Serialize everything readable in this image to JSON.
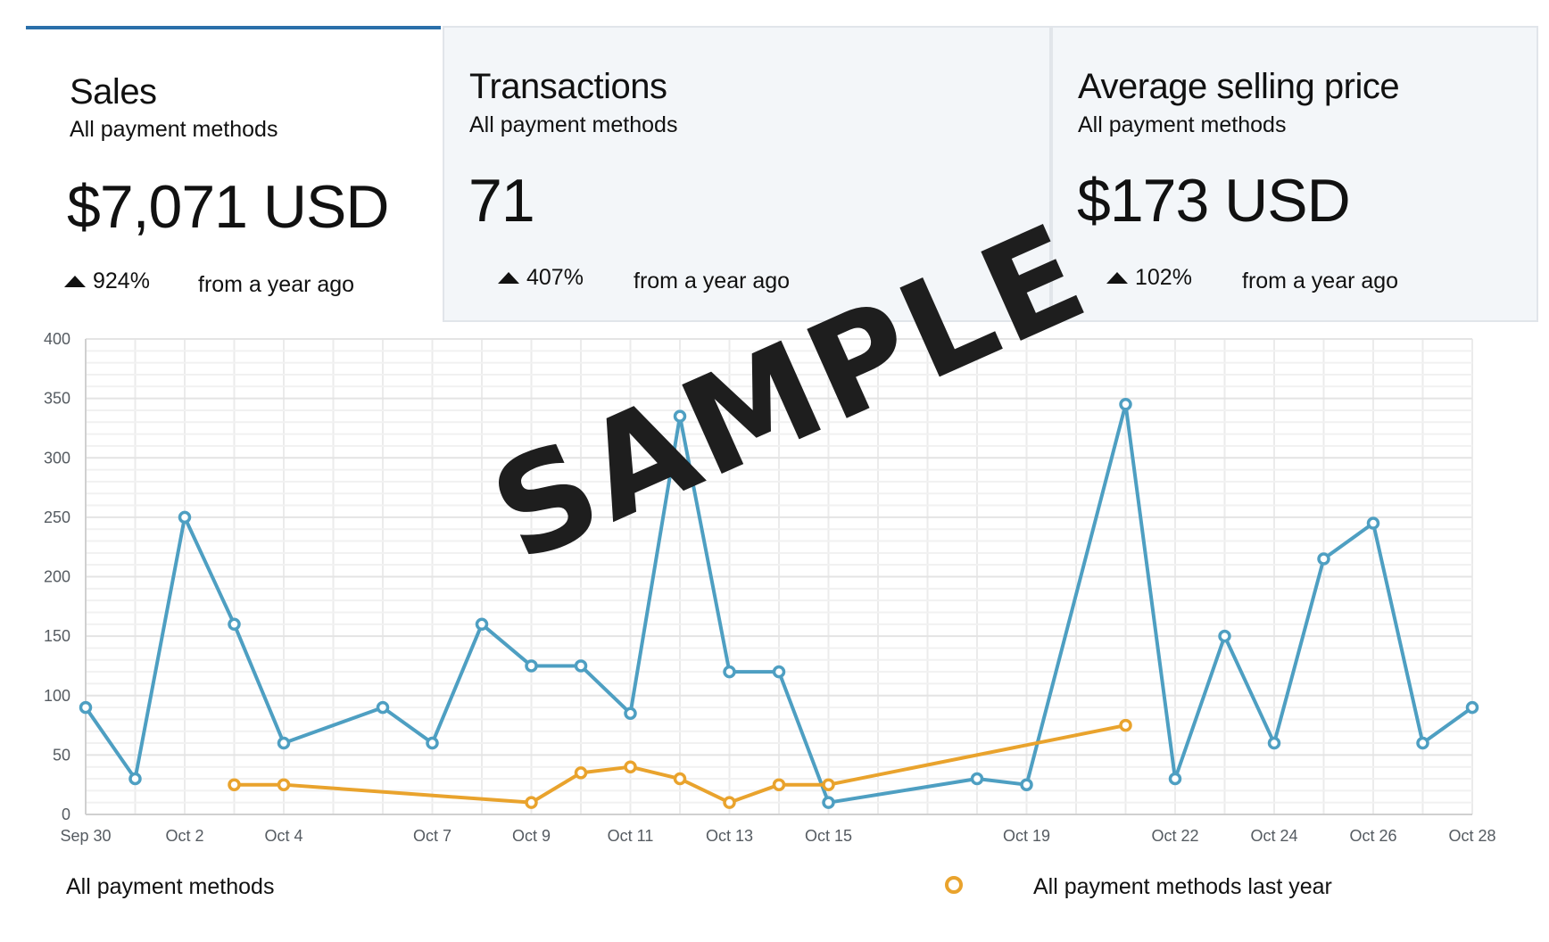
{
  "cards": [
    {
      "title": "Sales",
      "subtitle": "All payment methods",
      "value": "$7,071 USD",
      "change": "924%",
      "period": "from a year ago",
      "icon": "up-triangle-icon"
    },
    {
      "title": "Transactions",
      "subtitle": "All payment methods",
      "value": "71",
      "change": "407%",
      "period": "from a year ago",
      "icon": "up-triangle-icon"
    },
    {
      "title": "Average selling price",
      "subtitle": "All payment methods",
      "value": "$173 USD",
      "change": "102%",
      "period": "from a year ago",
      "icon": "up-triangle-icon"
    }
  ],
  "watermark": "SAMPLE",
  "legend": {
    "current": "All payment methods",
    "previous": "All payment methods last year"
  },
  "colors": {
    "current": "#4e9fc2",
    "previous": "#e9a32d",
    "active_tab": "#2a6faa",
    "inactive_bg": "#f3f6f9"
  },
  "chart_data": {
    "type": "line",
    "x_ticks": [
      "Sep 30",
      "Oct 2",
      "Oct 4",
      "Oct 7",
      "Oct 9",
      "Oct 11",
      "Oct 13",
      "Oct 15",
      "Oct 19",
      "Oct 22",
      "Oct 24",
      "Oct 26",
      "Oct 28"
    ],
    "y_ticks": [
      0,
      50,
      100,
      150,
      200,
      250,
      300,
      350,
      400
    ],
    "ylim": [
      0,
      400
    ],
    "x_range": [
      "2018-09-30",
      "2018-10-28"
    ],
    "grid": true,
    "legend_position": "bottom",
    "series": [
      {
        "name": "All payment methods",
        "color": "#4e9fc2",
        "points": [
          [
            "2018-09-30",
            90
          ],
          [
            "2018-10-01",
            30
          ],
          [
            "2018-10-02",
            250
          ],
          [
            "2018-10-03",
            160
          ],
          [
            "2018-10-04",
            60
          ],
          [
            "2018-10-06",
            90
          ],
          [
            "2018-10-07",
            60
          ],
          [
            "2018-10-08",
            160
          ],
          [
            "2018-10-09",
            125
          ],
          [
            "2018-10-10",
            125
          ],
          [
            "2018-10-11",
            85
          ],
          [
            "2018-10-12",
            335
          ],
          [
            "2018-10-13",
            120
          ],
          [
            "2018-10-14",
            120
          ],
          [
            "2018-10-15",
            10
          ],
          [
            "2018-10-18",
            30
          ],
          [
            "2018-10-19",
            25
          ],
          [
            "2018-10-21",
            345
          ],
          [
            "2018-10-22",
            30
          ],
          [
            "2018-10-23",
            150
          ],
          [
            "2018-10-24",
            60
          ],
          [
            "2018-10-25",
            215
          ],
          [
            "2018-10-26",
            245
          ],
          [
            "2018-10-27",
            60
          ],
          [
            "2018-10-28",
            90
          ]
        ]
      },
      {
        "name": "All payment methods last year",
        "color": "#e9a32d",
        "points": [
          [
            "2018-10-03",
            25
          ],
          [
            "2018-10-04",
            25
          ],
          [
            "2018-10-09",
            10
          ],
          [
            "2018-10-10",
            35
          ],
          [
            "2018-10-11",
            40
          ],
          [
            "2018-10-12",
            30
          ],
          [
            "2018-10-13",
            10
          ],
          [
            "2018-10-14",
            25
          ],
          [
            "2018-10-15",
            25
          ],
          [
            "2018-10-21",
            75
          ]
        ]
      }
    ]
  }
}
